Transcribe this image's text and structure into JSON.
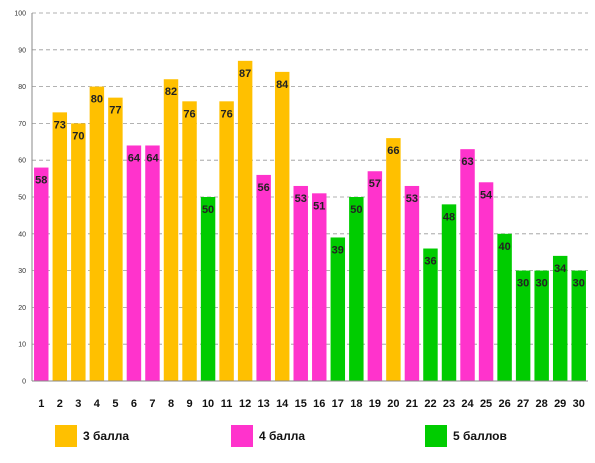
{
  "chart_data": {
    "type": "bar",
    "categories": [
      "1",
      "2",
      "3",
      "4",
      "5",
      "6",
      "7",
      "8",
      "9",
      "10",
      "11",
      "12",
      "13",
      "14",
      "15",
      "16",
      "17",
      "18",
      "19",
      "20",
      "21",
      "22",
      "23",
      "24",
      "25",
      "26",
      "27",
      "28",
      "29",
      "30"
    ],
    "values": [
      58,
      73,
      70,
      80,
      77,
      64,
      64,
      82,
      76,
      50,
      76,
      87,
      56,
      84,
      53,
      51,
      39,
      50,
      57,
      66,
      53,
      36,
      48,
      63,
      54,
      40,
      30,
      30,
      34,
      30
    ],
    "groups": [
      "4 балла",
      "3 балла",
      "3 балла",
      "3 балла",
      "3 балла",
      "4 балла",
      "4 балла",
      "3 балла",
      "3 балла",
      "5 баллов",
      "3 балла",
      "3 балла",
      "4 балла",
      "3 балла",
      "4 балла",
      "4 балла",
      "5 баллов",
      "5 баллов",
      "4 балла",
      "3 балла",
      "4 балла",
      "5 баллов",
      "5 баллов",
      "4 балла",
      "4 балла",
      "5 баллов",
      "5 баллов",
      "5 баллов",
      "5 баллов",
      "5 баллов"
    ],
    "ylim": [
      0,
      100
    ],
    "yticks": [
      0,
      10,
      20,
      30,
      40,
      50,
      60,
      70,
      80,
      90,
      100
    ],
    "grid": true,
    "legend_position": "bottom",
    "legend": [
      {
        "name": "3 балла",
        "color": "#FFC000"
      },
      {
        "name": "4 балла",
        "color": "#FF33CC"
      },
      {
        "name": "5 баллов",
        "color": "#00CC00"
      }
    ]
  }
}
